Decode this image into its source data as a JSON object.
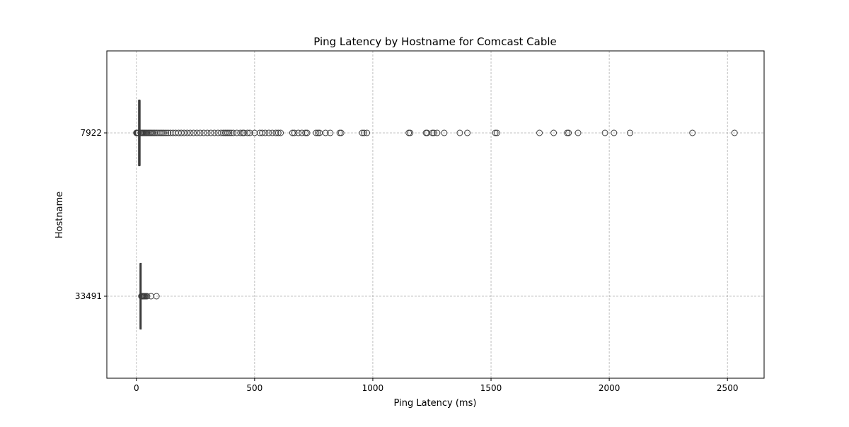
{
  "chart_data": {
    "type": "box",
    "orientation": "horizontal",
    "title": "Ping Latency by Hostname for Comcast Cable",
    "xlabel": "Ping Latency (ms)",
    "ylabel": "Hostname",
    "xlim": [
      -125,
      2655
    ],
    "xticks": [
      0,
      500,
      1000,
      1500,
      2000,
      2500
    ],
    "grid": true,
    "box_color": "#3d3d3d",
    "grid_color": "#b0b0b0",
    "categories": [
      "7922",
      "33491"
    ],
    "boxes": [
      {
        "category": "7922",
        "whisker_low": 9,
        "q1": 10,
        "median": 11,
        "q3": 13,
        "whisker_high": 16,
        "outliers": [
          0,
          1,
          2,
          3,
          4,
          5,
          6,
          7,
          8,
          18,
          20,
          22,
          25,
          28,
          32,
          36,
          40,
          45,
          50,
          55,
          60,
          66,
          72,
          78,
          85,
          92,
          100,
          108,
          116,
          125,
          134,
          144,
          155,
          166,
          178,
          190,
          202,
          215,
          228,
          242,
          256,
          270,
          285,
          300,
          315,
          330,
          345,
          358,
          368,
          376,
          384,
          392,
          400,
          410,
          425,
          440,
          450,
          455,
          470,
          480,
          500,
          522,
          532,
          545,
          560,
          575,
          590,
          600,
          610,
          660,
          668,
          685,
          700,
          715,
          722,
          760,
          768,
          775,
          800,
          820,
          860,
          866,
          955,
          963,
          975,
          1152,
          1158,
          1225,
          1230,
          1252,
          1258,
          1272,
          1302,
          1368,
          1400,
          1518,
          1525,
          1705,
          1765,
          1822,
          1828,
          1868,
          1982,
          2020,
          2088,
          2352,
          2530
        ]
      },
      {
        "category": "33491",
        "whisker_low": 15,
        "q1": 16,
        "median": 17,
        "q3": 19,
        "whisker_high": 20,
        "outliers": [
          21,
          23,
          25,
          27,
          30,
          33,
          36,
          40,
          45,
          62,
          85
        ]
      }
    ]
  }
}
